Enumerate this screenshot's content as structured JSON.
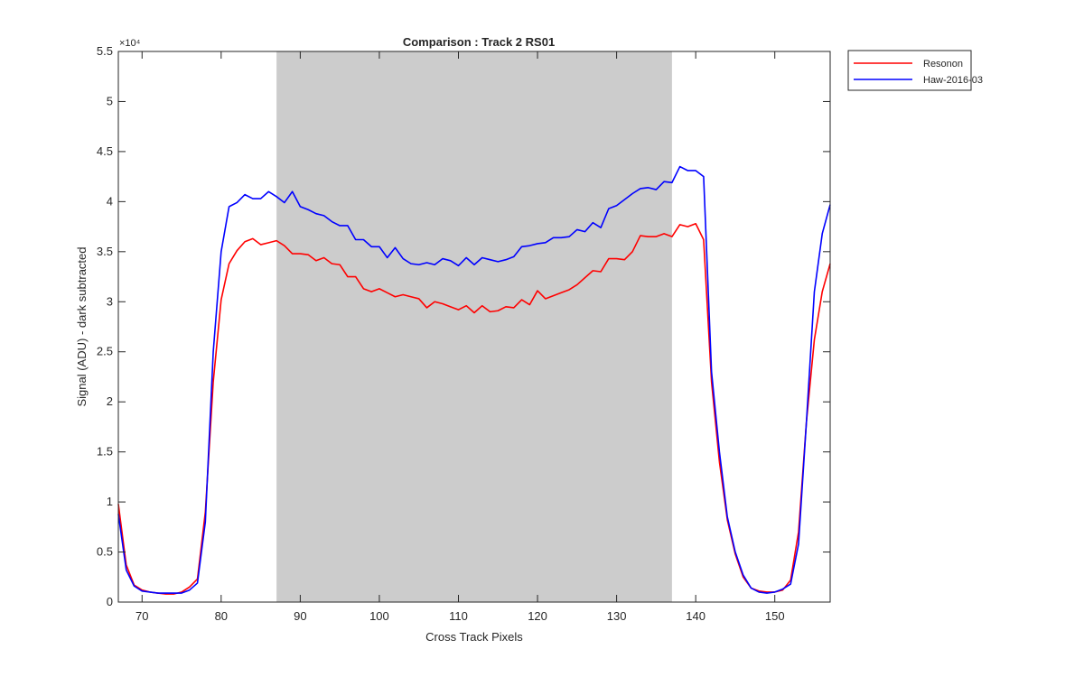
{
  "chart_data": {
    "type": "line",
    "title": "Comparison : Track 2  RS01",
    "xlabel": "Cross Track Pixels",
    "ylabel": "Signal (ADU) - dark subtracted",
    "y_exponent_label": "×10⁴",
    "xlim": [
      67,
      157
    ],
    "ylim": [
      0,
      5.5
    ],
    "y_scale_factor": 10000,
    "x_ticks": [
      70,
      80,
      90,
      100,
      110,
      120,
      130,
      140,
      150
    ],
    "y_ticks": [
      0,
      0.5,
      1,
      1.5,
      2,
      2.5,
      3,
      3.5,
      4,
      4.5,
      5,
      5.5
    ],
    "y_tick_labels": [
      "0",
      "0.5",
      "1",
      "1.5",
      "2",
      "2.5",
      "3",
      "3.5",
      "4",
      "4.5",
      "5",
      "5.5"
    ],
    "shaded_region": {
      "x_start": 87,
      "x_end": 137,
      "color": "#cccccc"
    },
    "legend_position": "outside-top-right",
    "grid": false,
    "x": [
      67,
      68,
      69,
      70,
      71,
      72,
      73,
      74,
      75,
      76,
      77,
      78,
      79,
      80,
      81,
      82,
      83,
      84,
      85,
      86,
      87,
      88,
      89,
      90,
      91,
      92,
      93,
      94,
      95,
      96,
      97,
      98,
      99,
      100,
      101,
      102,
      103,
      104,
      105,
      106,
      107,
      108,
      109,
      110,
      111,
      112,
      113,
      114,
      115,
      116,
      117,
      118,
      119,
      120,
      121,
      122,
      123,
      124,
      125,
      126,
      127,
      128,
      129,
      130,
      131,
      132,
      133,
      134,
      135,
      136,
      137,
      138,
      139,
      140,
      141,
      142,
      143,
      144,
      145,
      146,
      147,
      148,
      149,
      150,
      151,
      152,
      153,
      154,
      155,
      156,
      157
    ],
    "series": [
      {
        "name": "Resonon",
        "color": "#ff0000",
        "values": [
          0.98,
          0.37,
          0.17,
          0.12,
          0.1,
          0.09,
          0.08,
          0.08,
          0.1,
          0.15,
          0.23,
          0.9,
          2.2,
          3.02,
          3.38,
          3.51,
          3.6,
          3.63,
          3.57,
          3.59,
          3.61,
          3.56,
          3.48,
          3.48,
          3.47,
          3.41,
          3.44,
          3.38,
          3.37,
          3.25,
          3.25,
          3.13,
          3.1,
          3.13,
          3.09,
          3.05,
          3.07,
          3.05,
          3.03,
          2.94,
          3.0,
          2.98,
          2.95,
          2.92,
          2.96,
          2.89,
          2.96,
          2.9,
          2.91,
          2.95,
          2.94,
          3.02,
          2.97,
          3.11,
          3.03,
          3.06,
          3.09,
          3.12,
          3.17,
          3.24,
          3.31,
          3.3,
          3.43,
          3.43,
          3.42,
          3.5,
          3.66,
          3.65,
          3.65,
          3.68,
          3.65,
          3.77,
          3.75,
          3.78,
          3.62,
          2.2,
          1.4,
          0.82,
          0.48,
          0.25,
          0.14,
          0.11,
          0.1,
          0.1,
          0.12,
          0.22,
          0.7,
          1.8,
          2.62,
          3.1,
          3.38
        ]
      },
      {
        "name": "Haw-2016-03",
        "color": "#0000ff",
        "values": [
          0.88,
          0.32,
          0.16,
          0.11,
          0.1,
          0.09,
          0.09,
          0.09,
          0.09,
          0.12,
          0.19,
          0.8,
          2.5,
          3.5,
          3.95,
          3.99,
          4.07,
          4.03,
          4.03,
          4.1,
          4.05,
          3.99,
          4.1,
          3.95,
          3.92,
          3.88,
          3.86,
          3.8,
          3.76,
          3.76,
          3.62,
          3.62,
          3.55,
          3.55,
          3.44,
          3.54,
          3.43,
          3.38,
          3.37,
          3.39,
          3.37,
          3.43,
          3.41,
          3.36,
          3.44,
          3.37,
          3.44,
          3.42,
          3.4,
          3.42,
          3.45,
          3.55,
          3.56,
          3.58,
          3.59,
          3.64,
          3.64,
          3.65,
          3.72,
          3.7,
          3.79,
          3.74,
          3.93,
          3.96,
          4.02,
          4.08,
          4.13,
          4.14,
          4.12,
          4.2,
          4.19,
          4.35,
          4.31,
          4.31,
          4.25,
          2.3,
          1.5,
          0.85,
          0.5,
          0.27,
          0.14,
          0.1,
          0.09,
          0.1,
          0.13,
          0.18,
          0.58,
          1.8,
          3.1,
          3.68,
          3.97
        ]
      }
    ]
  }
}
